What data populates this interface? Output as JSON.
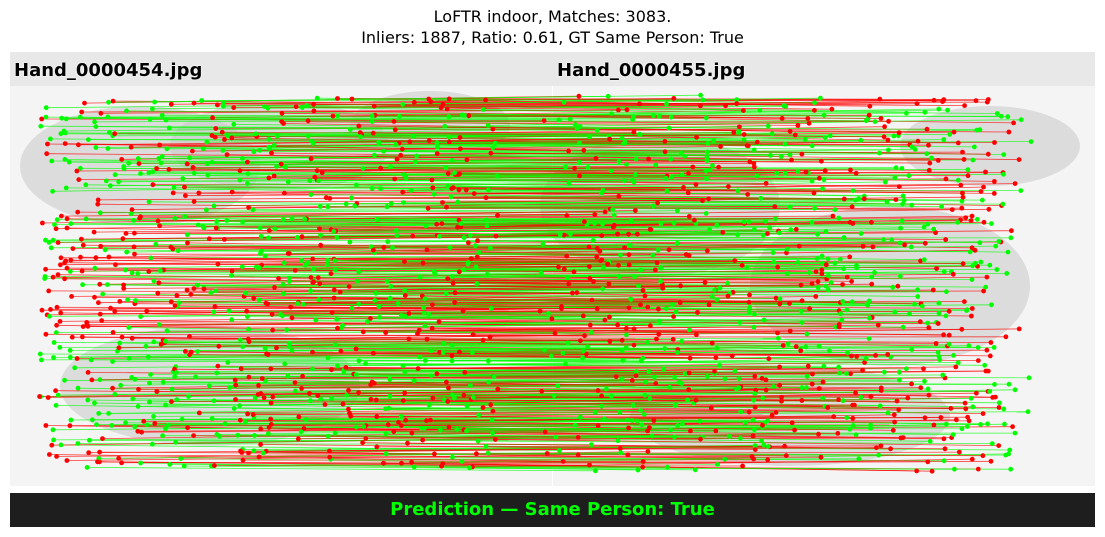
{
  "title": {
    "line1": "LoFTR indoor, Matches: 3083.",
    "line2": "Inliers: 1887, Ratio: 0.61, GT Same Person: True"
  },
  "images": {
    "left_label": "Hand_0000454.jpg",
    "right_label": "Hand_0000455.jpg"
  },
  "prediction": {
    "text": "Prediction — Same Person: True"
  },
  "match_visualization": {
    "matches": 3083,
    "inliers": 1887,
    "ratio": 0.61,
    "colors": {
      "inlier": "#00ff00",
      "outlier": "#ff0000",
      "image_gray": "#c8c8c8"
    }
  }
}
